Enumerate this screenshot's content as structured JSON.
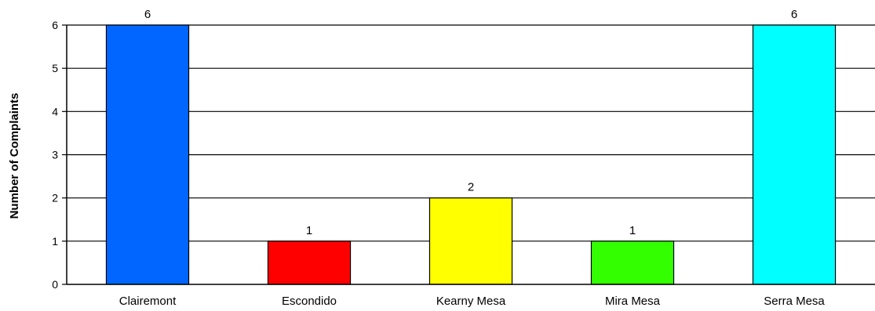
{
  "chart_data": {
    "type": "bar",
    "title": "",
    "xlabel": "",
    "ylabel": "Number of Complaints",
    "categories": [
      "Clairemont",
      "Escondido",
      "Kearny Mesa",
      "Mira Mesa",
      "Serra Mesa"
    ],
    "values": [
      6,
      1,
      2,
      1,
      6
    ],
    "colors": [
      "#0066ff",
      "#ff0000",
      "#ffff00",
      "#33ff00",
      "#00ffff"
    ],
    "ylim": [
      0,
      6
    ],
    "yticks": [
      0,
      1,
      2,
      3,
      4,
      5,
      6
    ],
    "grid": true,
    "data_labels": true
  }
}
